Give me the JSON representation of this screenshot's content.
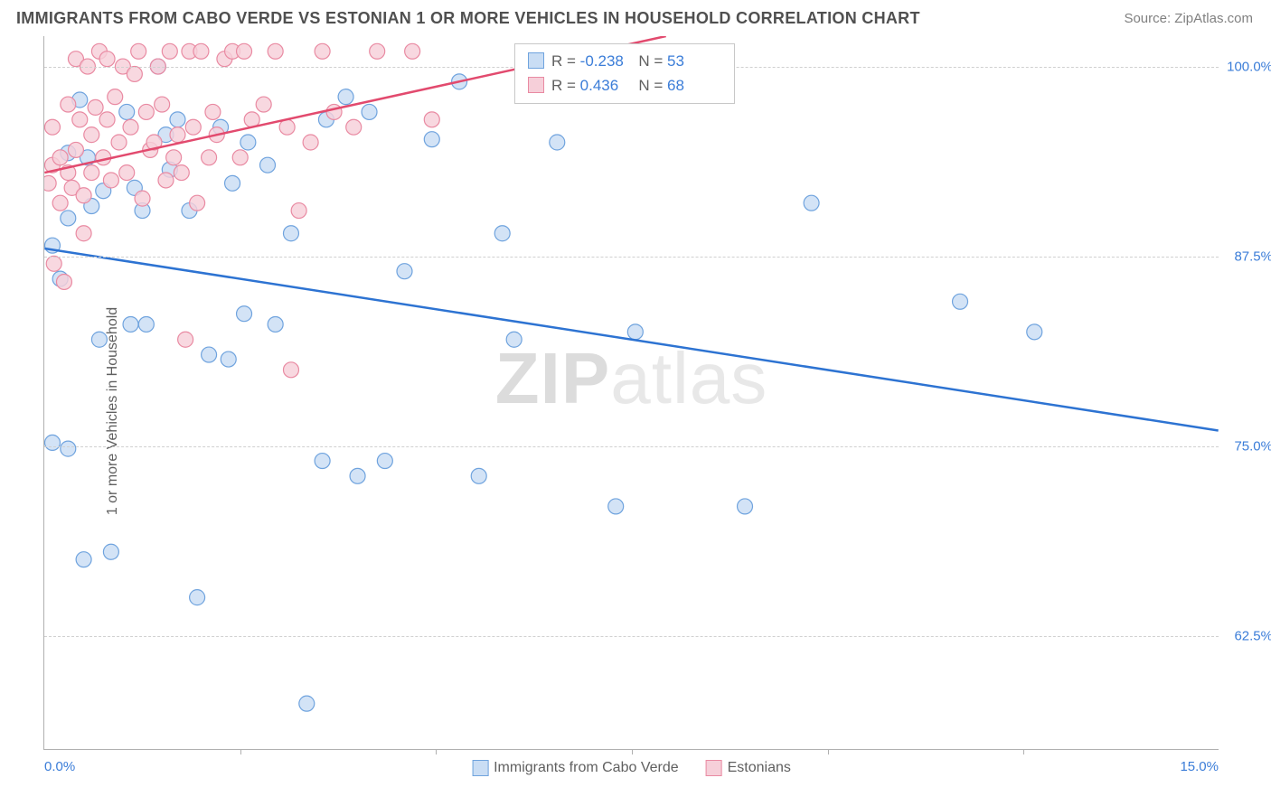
{
  "header": {
    "title": "IMMIGRANTS FROM CABO VERDE VS ESTONIAN 1 OR MORE VEHICLES IN HOUSEHOLD CORRELATION CHART",
    "source": "Source: ZipAtlas.com"
  },
  "chart": {
    "type": "scatter",
    "ylabel": "1 or more Vehicles in Household",
    "background_color": "#ffffff",
    "grid_color": "#d0d0d0",
    "axis_color": "#b0b0b0",
    "tick_label_color": "#3b7dd8",
    "xlim": [
      0.0,
      15.0
    ],
    "ylim": [
      55.0,
      102.0
    ],
    "xticks_major": [
      0.0,
      15.0
    ],
    "xtick_labels": [
      "0.0%",
      "15.0%"
    ],
    "xticks_minor_step": 2.5,
    "yticks": [
      62.5,
      75.0,
      87.5,
      100.0
    ],
    "ytick_labels": [
      "62.5%",
      "75.0%",
      "87.5%",
      "100.0%"
    ],
    "point_radius": 8.5,
    "point_stroke_width": 1.2,
    "title_fontsize": 18,
    "label_fontsize": 16,
    "tick_fontsize": 15,
    "series": [
      {
        "name": "Immigrants from Cabo Verde",
        "fill": "#c9ddf4",
        "stroke": "#6fa3de",
        "line_color": "#2d73d2",
        "line_width": 2.5,
        "r_value": "-0.238",
        "n_value": "53",
        "trend_y_at_xlim": [
          88.0,
          76.0
        ],
        "points": [
          [
            0.1,
            75.2
          ],
          [
            0.1,
            88.2
          ],
          [
            0.2,
            86.0
          ],
          [
            0.3,
            94.3
          ],
          [
            0.3,
            90.0
          ],
          [
            0.3,
            74.8
          ],
          [
            0.45,
            97.8
          ],
          [
            0.5,
            67.5
          ],
          [
            0.55,
            94.0
          ],
          [
            0.6,
            90.8
          ],
          [
            0.7,
            82.0
          ],
          [
            0.75,
            91.8
          ],
          [
            0.85,
            68.0
          ],
          [
            1.05,
            97.0
          ],
          [
            1.1,
            83.0
          ],
          [
            1.15,
            92.0
          ],
          [
            1.25,
            90.5
          ],
          [
            1.3,
            83.0
          ],
          [
            1.45,
            100.0
          ],
          [
            1.55,
            95.5
          ],
          [
            1.6,
            93.2
          ],
          [
            1.7,
            96.5
          ],
          [
            1.85,
            90.5
          ],
          [
            1.95,
            65.0
          ],
          [
            2.1,
            81.0
          ],
          [
            2.25,
            96.0
          ],
          [
            2.35,
            80.7
          ],
          [
            2.4,
            92.3
          ],
          [
            2.55,
            83.7
          ],
          [
            2.6,
            95.0
          ],
          [
            2.85,
            93.5
          ],
          [
            2.95,
            83.0
          ],
          [
            3.15,
            89.0
          ],
          [
            3.35,
            58.0
          ],
          [
            3.55,
            74.0
          ],
          [
            3.6,
            96.5
          ],
          [
            3.85,
            98.0
          ],
          [
            4.0,
            73.0
          ],
          [
            4.15,
            97.0
          ],
          [
            4.35,
            74.0
          ],
          [
            4.6,
            86.5
          ],
          [
            4.95,
            95.2
          ],
          [
            5.3,
            99.0
          ],
          [
            5.55,
            73.0
          ],
          [
            5.85,
            89.0
          ],
          [
            6.0,
            82.0
          ],
          [
            6.55,
            95.0
          ],
          [
            7.3,
            71.0
          ],
          [
            7.55,
            82.5
          ],
          [
            8.95,
            71.0
          ],
          [
            9.8,
            91.0
          ],
          [
            11.7,
            84.5
          ],
          [
            12.65,
            82.5
          ]
        ]
      },
      {
        "name": "Estonians",
        "fill": "#f6cfd9",
        "stroke": "#e98aa2",
        "line_color": "#e24a6e",
        "line_width": 2.5,
        "r_value": "0.436",
        "n_value": "68",
        "trend_y_at_xlim": [
          93.0,
          110.0
        ],
        "points": [
          [
            0.05,
            92.3
          ],
          [
            0.1,
            96.0
          ],
          [
            0.1,
            93.5
          ],
          [
            0.12,
            87.0
          ],
          [
            0.2,
            94.0
          ],
          [
            0.2,
            91.0
          ],
          [
            0.25,
            85.8
          ],
          [
            0.3,
            97.5
          ],
          [
            0.3,
            93.0
          ],
          [
            0.35,
            92.0
          ],
          [
            0.4,
            100.5
          ],
          [
            0.4,
            94.5
          ],
          [
            0.45,
            96.5
          ],
          [
            0.5,
            91.5
          ],
          [
            0.5,
            89.0
          ],
          [
            0.55,
            100.0
          ],
          [
            0.6,
            95.5
          ],
          [
            0.6,
            93.0
          ],
          [
            0.65,
            97.3
          ],
          [
            0.7,
            101.0
          ],
          [
            0.75,
            94.0
          ],
          [
            0.8,
            100.5
          ],
          [
            0.8,
            96.5
          ],
          [
            0.85,
            92.5
          ],
          [
            0.9,
            98.0
          ],
          [
            0.95,
            95.0
          ],
          [
            1.0,
            100.0
          ],
          [
            1.05,
            93.0
          ],
          [
            1.1,
            96.0
          ],
          [
            1.15,
            99.5
          ],
          [
            1.2,
            101.0
          ],
          [
            1.25,
            91.3
          ],
          [
            1.3,
            97.0
          ],
          [
            1.35,
            94.5
          ],
          [
            1.4,
            95.0
          ],
          [
            1.45,
            100.0
          ],
          [
            1.5,
            97.5
          ],
          [
            1.55,
            92.5
          ],
          [
            1.6,
            101.0
          ],
          [
            1.65,
            94.0
          ],
          [
            1.7,
            95.5
          ],
          [
            1.75,
            93.0
          ],
          [
            1.8,
            82.0
          ],
          [
            1.85,
            101.0
          ],
          [
            1.9,
            96.0
          ],
          [
            1.95,
            91.0
          ],
          [
            2.0,
            101.0
          ],
          [
            2.1,
            94.0
          ],
          [
            2.15,
            97.0
          ],
          [
            2.2,
            95.5
          ],
          [
            2.3,
            100.5
          ],
          [
            2.4,
            101.0
          ],
          [
            2.5,
            94.0
          ],
          [
            2.55,
            101.0
          ],
          [
            2.65,
            96.5
          ],
          [
            2.8,
            97.5
          ],
          [
            2.95,
            101.0
          ],
          [
            3.1,
            96.0
          ],
          [
            3.15,
            80.0
          ],
          [
            3.25,
            90.5
          ],
          [
            3.4,
            95.0
          ],
          [
            3.55,
            101.0
          ],
          [
            3.7,
            97.0
          ],
          [
            3.95,
            96.0
          ],
          [
            4.25,
            101.0
          ],
          [
            4.7,
            101.0
          ],
          [
            4.95,
            96.5
          ],
          [
            7.3,
            100.5
          ]
        ]
      }
    ]
  },
  "watermark": {
    "bold": "ZIP",
    "light": "atlas"
  },
  "legend_bottom": [
    {
      "label": "Immigrants from Cabo Verde",
      "fill": "#c9ddf4",
      "stroke": "#6fa3de"
    },
    {
      "label": "Estonians",
      "fill": "#f6cfd9",
      "stroke": "#e98aa2"
    }
  ],
  "corr_box": {
    "r_label": "R =",
    "n_label": "N =",
    "rows": [
      {
        "fill": "#c9ddf4",
        "stroke": "#6fa3de",
        "r": "-0.238",
        "n": "53"
      },
      {
        "fill": "#f6cfd9",
        "stroke": "#e98aa2",
        "r": "0.436",
        "n": "68"
      }
    ]
  }
}
